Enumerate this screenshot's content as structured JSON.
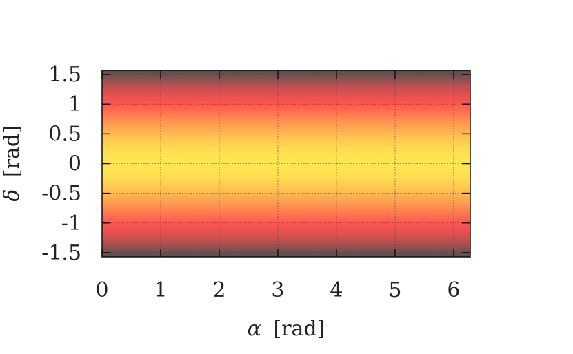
{
  "chart_data": {
    "type": "heatmap",
    "title": "",
    "xlabel_symbol": "α",
    "xlabel_unit": "[rad]",
    "ylabel_symbol": "δ",
    "ylabel_unit": "[rad]",
    "xlim": [
      0,
      6.283
    ],
    "ylim": [
      -1.571,
      1.571
    ],
    "x_ticks": [
      {
        "value": 0,
        "label": "0"
      },
      {
        "value": 1,
        "label": "1"
      },
      {
        "value": 2,
        "label": "2"
      },
      {
        "value": 3,
        "label": "3"
      },
      {
        "value": 4,
        "label": "4"
      },
      {
        "value": 5,
        "label": "5"
      },
      {
        "value": 6,
        "label": "6"
      }
    ],
    "y_ticks": [
      {
        "value": 1.5,
        "label": "1.5"
      },
      {
        "value": 1,
        "label": "1"
      },
      {
        "value": 0.5,
        "label": "0.5"
      },
      {
        "value": 0,
        "label": "0"
      },
      {
        "value": -0.5,
        "label": "-0.5"
      },
      {
        "value": -1,
        "label": "-1"
      },
      {
        "value": -1.5,
        "label": "-1.5"
      }
    ],
    "grid": true,
    "colorbar": false,
    "colormap": [
      "#505050",
      "#ff5050",
      "#ffe850"
    ],
    "description_of_field": "intensity depends only on delta; maximum (yellow) at delta = 0, red near |delta| = 1, dark grey near |delta| = pi/2; uniform along alpha",
    "profile": [
      {
        "delta": -1.571,
        "level": 0.0
      },
      {
        "delta": -1.45,
        "level": 0.14
      },
      {
        "delta": -1.3,
        "level": 0.31
      },
      {
        "delta": -1.15,
        "level": 0.43
      },
      {
        "delta": -1.0,
        "level": 0.52
      },
      {
        "delta": -0.8,
        "level": 0.66
      },
      {
        "delta": -0.5,
        "level": 0.85
      },
      {
        "delta": -0.25,
        "level": 0.96
      },
      {
        "delta": 0.0,
        "level": 1.0
      },
      {
        "delta": 0.25,
        "level": 0.96
      },
      {
        "delta": 0.5,
        "level": 0.85
      },
      {
        "delta": 0.8,
        "level": 0.66
      },
      {
        "delta": 1.0,
        "level": 0.52
      },
      {
        "delta": 1.15,
        "level": 0.43
      },
      {
        "delta": 1.3,
        "level": 0.31
      },
      {
        "delta": 1.45,
        "level": 0.14
      },
      {
        "delta": 1.571,
        "level": 0.0
      }
    ]
  }
}
